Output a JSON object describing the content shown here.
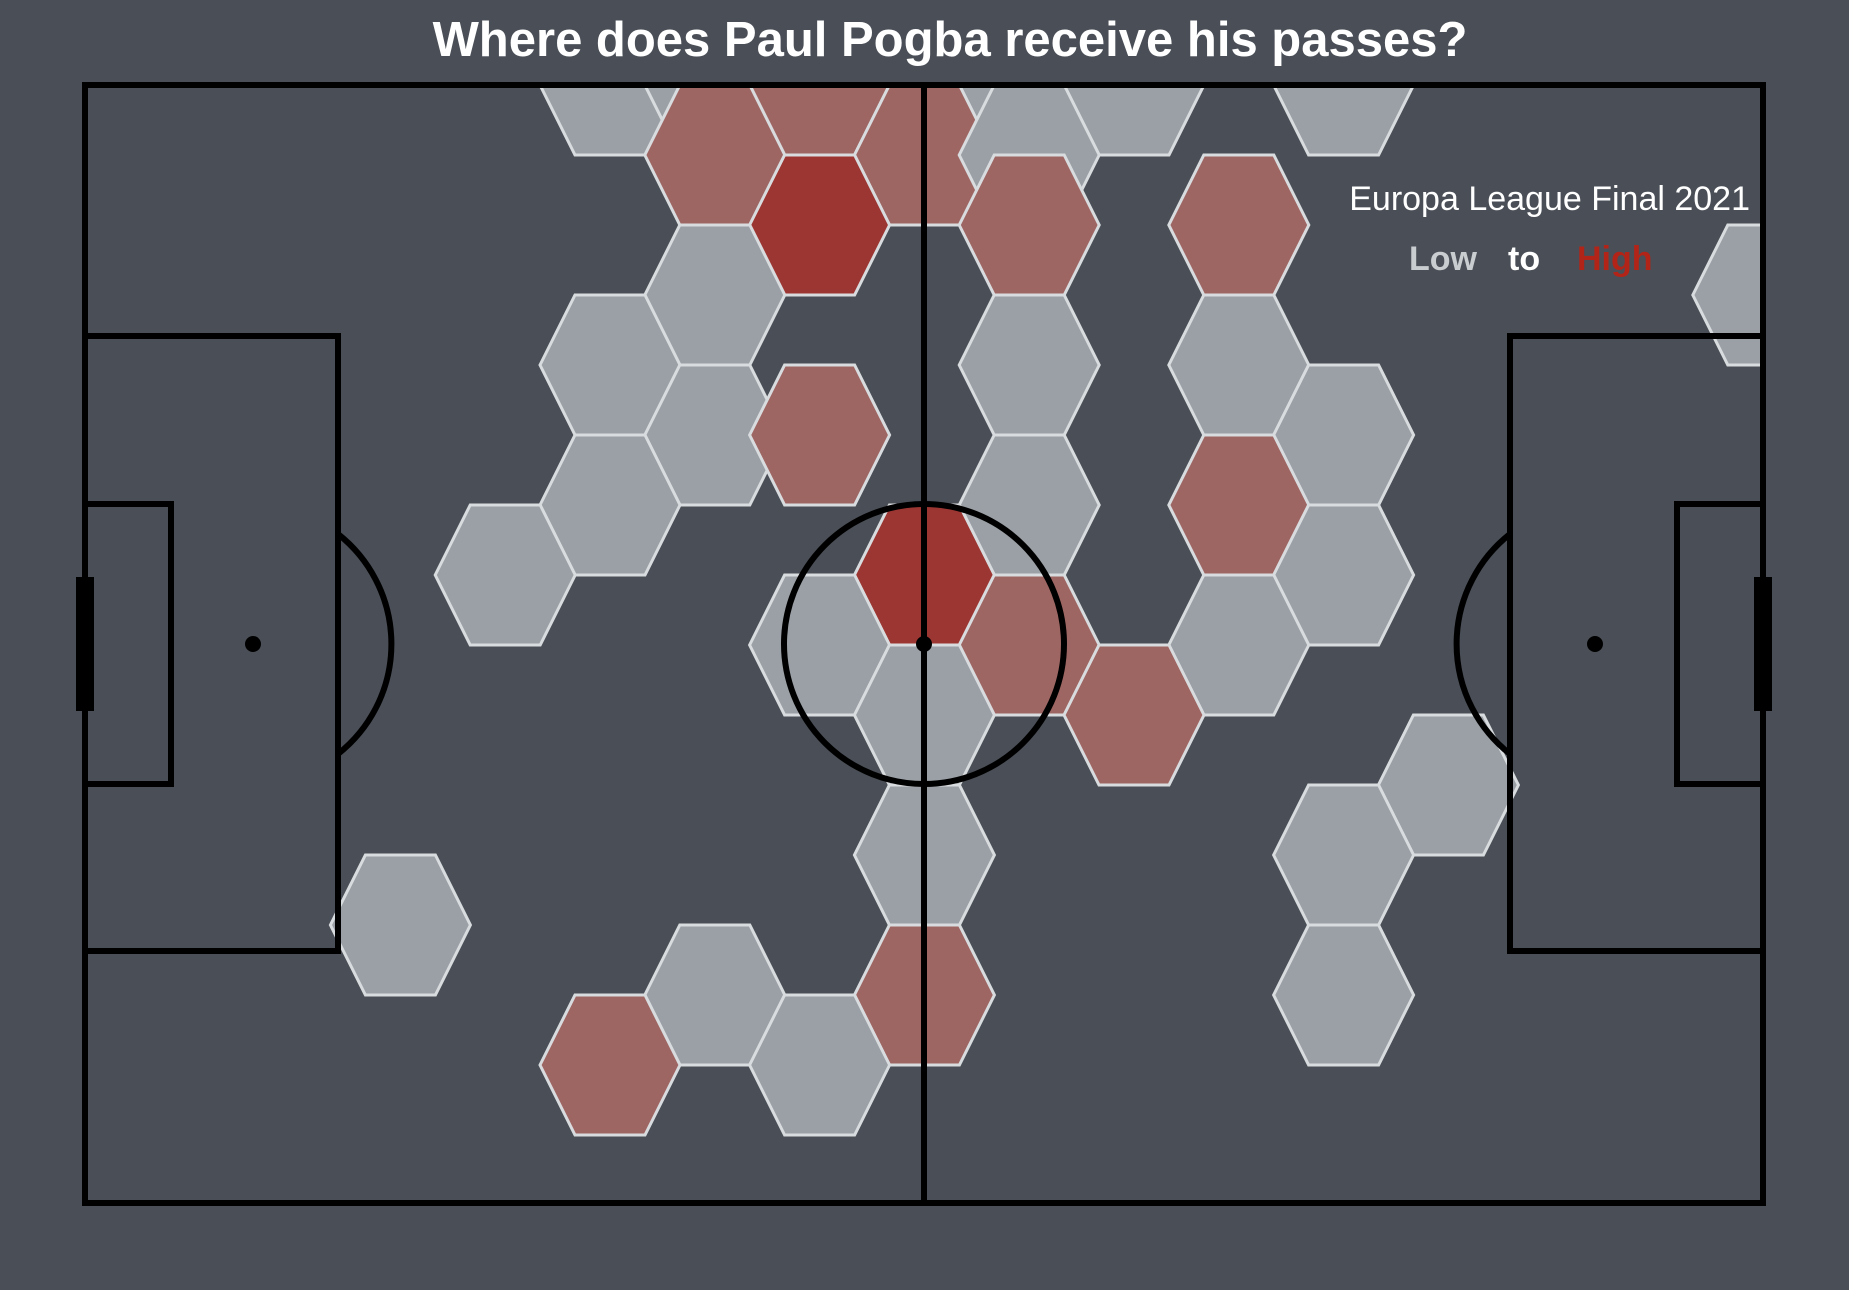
{
  "chart_data": {
    "type": "heatmap",
    "title": "Where does Paul Pogba receive his passes?",
    "subtitle": "Europa League Final 2021",
    "legend": {
      "low_label": "Low",
      "to_label": "to",
      "high_label": "High",
      "placement": "top-right"
    },
    "colors": {
      "background": "#4a4f57",
      "low": "#9aa0a5",
      "mid": "#9e6663",
      "high": "#9c3632",
      "lines": "#000000",
      "hex_edge": "#d9dcdf"
    },
    "pitch": {
      "length": 120,
      "width": 80
    },
    "bins": [
      {
        "col": 5,
        "row": 0,
        "level": 1
      },
      {
        "col": 6,
        "row": 0,
        "level": 1
      },
      {
        "col": 9,
        "row": 0,
        "level": 1
      },
      {
        "col": 10,
        "row": 0,
        "level": 1
      },
      {
        "col": 12,
        "row": 0,
        "level": 1
      },
      {
        "col": 7,
        "row": 0,
        "level": 2
      },
      {
        "col": 6,
        "row": 1,
        "level": 2
      },
      {
        "col": 8,
        "row": 1,
        "level": 2
      },
      {
        "col": 9,
        "row": 1,
        "level": 1
      },
      {
        "col": 7,
        "row": 2,
        "level": 3
      },
      {
        "col": 9,
        "row": 2,
        "level": 2
      },
      {
        "col": 11,
        "row": 2,
        "level": 2
      },
      {
        "col": 6,
        "row": 3,
        "level": 1
      },
      {
        "col": 16,
        "row": 3,
        "level": 1
      },
      {
        "col": 5,
        "row": 4,
        "level": 1
      },
      {
        "col": 9,
        "row": 4,
        "level": 1
      },
      {
        "col": 11,
        "row": 4,
        "level": 1
      },
      {
        "col": 6,
        "row": 5,
        "level": 1
      },
      {
        "col": 12,
        "row": 5,
        "level": 1
      },
      {
        "col": 7,
        "row": 5,
        "level": 2
      },
      {
        "col": 5,
        "row": 6,
        "level": 1
      },
      {
        "col": 9,
        "row": 6,
        "level": 1
      },
      {
        "col": 11,
        "row": 6,
        "level": 2
      },
      {
        "col": 4,
        "row": 7,
        "level": 1
      },
      {
        "col": 12,
        "row": 7,
        "level": 1
      },
      {
        "col": 8,
        "row": 7,
        "level": 3
      },
      {
        "col": 7,
        "row": 8,
        "level": 1
      },
      {
        "col": 11,
        "row": 8,
        "level": 1
      },
      {
        "col": 9,
        "row": 8,
        "level": 2
      },
      {
        "col": 8,
        "row": 9,
        "level": 1
      },
      {
        "col": 10,
        "row": 9,
        "level": 2
      },
      {
        "col": 13,
        "row": 10,
        "level": 1
      },
      {
        "col": 8,
        "row": 11,
        "level": 1
      },
      {
        "col": 12,
        "row": 11,
        "level": 1
      },
      {
        "col": 3,
        "row": 12,
        "level": 1
      },
      {
        "col": 6,
        "row": 13,
        "level": 1
      },
      {
        "col": 12,
        "row": 13,
        "level": 1
      },
      {
        "col": 8,
        "row": 13,
        "level": 2
      },
      {
        "col": 5,
        "row": 14,
        "level": 2
      },
      {
        "col": 7,
        "row": 14,
        "level": 1
      }
    ]
  }
}
